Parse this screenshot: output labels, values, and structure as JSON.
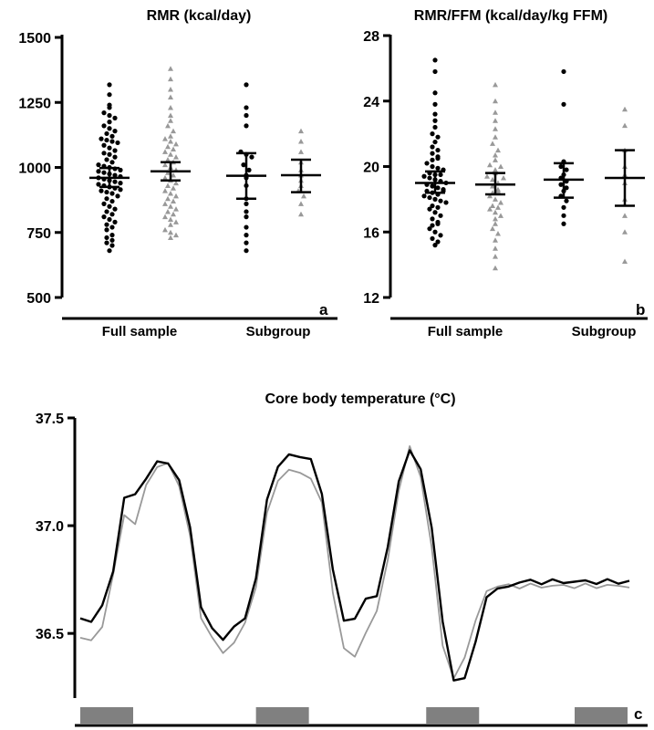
{
  "chart_data": [
    {
      "type": "scatter",
      "panel_label": "a",
      "title": "RMR (kcal/day)",
      "ylim": [
        500,
        1500
      ],
      "yticks": [
        500,
        750,
        1000,
        1250,
        1500
      ],
      "group_labels": [
        "Full sample",
        "Subgroup"
      ],
      "series": [
        {
          "group": "Full sample",
          "marker": "circle",
          "color": "#000000",
          "mean": 960,
          "ci": [
            925,
            998
          ],
          "values": [
            1318,
            1280,
            1240,
            1230,
            1210,
            1200,
            1190,
            1175,
            1160,
            1150,
            1140,
            1130,
            1120,
            1110,
            1105,
            1100,
            1095,
            1085,
            1075,
            1065,
            1055,
            1050,
            1040,
            1030,
            1020,
            1010,
            1005,
            1000,
            995,
            990,
            985,
            980,
            975,
            970,
            965,
            960,
            955,
            950,
            945,
            940,
            935,
            930,
            925,
            920,
            915,
            910,
            905,
            900,
            890,
            880,
            870,
            860,
            850,
            840,
            830,
            820,
            810,
            800,
            790,
            780,
            770,
            760,
            740,
            730,
            720,
            710,
            700,
            680
          ]
        },
        {
          "group": "Full sample",
          "marker": "triangle",
          "color": "#999999",
          "mean": 985,
          "ci": [
            950,
            1020
          ],
          "values": [
            1380,
            1340,
            1300,
            1270,
            1230,
            1200,
            1180,
            1160,
            1140,
            1120,
            1110,
            1100,
            1090,
            1080,
            1070,
            1060,
            1050,
            1040,
            1030,
            1020,
            1010,
            1000,
            990,
            980,
            970,
            960,
            950,
            940,
            930,
            920,
            910,
            900,
            890,
            880,
            870,
            860,
            850,
            840,
            830,
            820,
            810,
            800,
            790,
            780,
            760,
            750,
            740,
            730
          ]
        },
        {
          "group": "Subgroup",
          "marker": "circle",
          "color": "#000000",
          "mean": 968,
          "ci": [
            880,
            1055
          ],
          "values": [
            1318,
            1230,
            1200,
            1160,
            1060,
            1050,
            1040,
            1010,
            990,
            970,
            960,
            930,
            880,
            860,
            830,
            810,
            770,
            740,
            710,
            680
          ]
        },
        {
          "group": "Subgroup",
          "marker": "triangle",
          "color": "#999999",
          "mean": 970,
          "ci": [
            905,
            1030
          ],
          "values": [
            1140,
            1100,
            1060,
            1020,
            990,
            970,
            950,
            930,
            910,
            890,
            860,
            820
          ]
        }
      ]
    },
    {
      "type": "scatter",
      "panel_label": "b",
      "title": "RMR/FFM (kcal/day/kg FFM)",
      "ylim": [
        12,
        28
      ],
      "yticks": [
        12,
        16,
        20,
        24,
        28
      ],
      "group_labels": [
        "Full sample",
        "Subgroup"
      ],
      "series": [
        {
          "group": "Full sample",
          "marker": "circle",
          "color": "#000000",
          "mean": 19.0,
          "ci": [
            18.4,
            19.7
          ],
          "values": [
            26.5,
            25.8,
            24.5,
            23.8,
            23.2,
            22.8,
            22.4,
            22.0,
            21.8,
            21.5,
            21.2,
            21.0,
            20.8,
            20.6,
            20.4,
            20.2,
            20.0,
            19.9,
            19.8,
            19.6,
            19.5,
            19.4,
            19.3,
            19.2,
            19.1,
            19.0,
            18.9,
            18.8,
            18.7,
            18.6,
            18.5,
            18.4,
            18.3,
            18.2,
            18.1,
            18.0,
            17.9,
            17.8,
            17.6,
            17.4,
            17.2,
            17.0,
            16.8,
            16.6,
            16.4,
            16.2,
            16.0,
            15.8,
            15.6,
            15.4,
            15.2,
            18.5,
            19.5,
            20.5,
            17.5,
            16.5
          ]
        },
        {
          "group": "Full sample",
          "marker": "triangle",
          "color": "#999999",
          "mean": 18.9,
          "ci": [
            18.3,
            19.6
          ],
          "values": [
            25.0,
            24.0,
            23.3,
            22.8,
            22.3,
            21.8,
            21.4,
            21.0,
            20.7,
            20.4,
            20.1,
            19.8,
            19.6,
            19.4,
            19.2,
            19.0,
            18.8,
            18.6,
            18.4,
            18.2,
            18.0,
            17.8,
            17.6,
            17.4,
            17.2,
            17.0,
            16.8,
            16.5,
            16.2,
            15.9,
            15.5,
            15.0,
            14.5,
            13.8,
            20.0,
            18.5,
            17.5,
            19.3
          ]
        },
        {
          "group": "Subgroup",
          "marker": "circle",
          "color": "#000000",
          "mean": 19.2,
          "ci": [
            18.1,
            20.2
          ],
          "values": [
            25.8,
            23.8,
            20.3,
            20.0,
            19.8,
            19.5,
            19.3,
            19.1,
            18.9,
            18.7,
            18.5,
            18.2,
            17.9,
            17.5,
            17.0,
            16.5
          ]
        },
        {
          "group": "Subgroup",
          "marker": "triangle",
          "color": "#999999",
          "mean": 19.3,
          "ci": [
            17.6,
            21.0
          ],
          "values": [
            23.5,
            22.5,
            21.0,
            20.0,
            19.5,
            19.0,
            18.0,
            17.0,
            16.0,
            14.2
          ]
        }
      ]
    },
    {
      "type": "line",
      "panel_label": "c",
      "title": "Core body temperature (°C)",
      "ylim": [
        36.2,
        37.5
      ],
      "yticks": [
        36.5,
        37.0,
        37.5
      ],
      "x": [
        0,
        2,
        4,
        6,
        8,
        10,
        12,
        14,
        16,
        18,
        20,
        22,
        24,
        26,
        28,
        30,
        32,
        34,
        36,
        38,
        40,
        42,
        44,
        46,
        48,
        50,
        52,
        54,
        56,
        58,
        60,
        62,
        64,
        66,
        68,
        70,
        72,
        74,
        76,
        78,
        80,
        82,
        84,
        86,
        88,
        90,
        92,
        94,
        96,
        98,
        100
      ],
      "series": [
        {
          "color": "#000000",
          "values": [
            36.57,
            36.56,
            36.62,
            36.8,
            37.12,
            37.15,
            37.22,
            37.29,
            37.3,
            37.2,
            37.0,
            36.62,
            36.52,
            36.48,
            36.52,
            36.58,
            36.75,
            37.12,
            37.28,
            37.32,
            37.33,
            37.3,
            37.15,
            36.8,
            36.55,
            36.58,
            36.65,
            36.68,
            36.9,
            37.2,
            37.36,
            37.25,
            37.0,
            36.55,
            36.28,
            36.3,
            36.45,
            36.68,
            36.7,
            36.72,
            36.74,
            36.74,
            36.74,
            36.74,
            36.74,
            36.74,
            36.74,
            36.74,
            36.74,
            36.74,
            36.74
          ]
        },
        {
          "color": "#999999",
          "values": [
            36.47,
            36.48,
            36.52,
            36.78,
            37.05,
            37.0,
            37.2,
            37.26,
            37.3,
            37.18,
            36.95,
            36.58,
            36.47,
            36.42,
            36.45,
            36.55,
            36.72,
            37.05,
            37.22,
            37.25,
            37.25,
            37.22,
            37.1,
            36.7,
            36.42,
            36.4,
            36.5,
            36.6,
            36.85,
            37.15,
            37.38,
            37.22,
            36.9,
            36.45,
            36.28,
            36.4,
            36.55,
            36.7,
            36.72,
            36.72,
            36.72,
            36.72,
            36.72,
            36.72,
            36.72,
            36.72,
            36.72,
            36.72,
            36.72,
            36.72,
            36.72
          ]
        }
      ],
      "shaded_periods": [
        [
          0,
          10
        ],
        [
          32,
          42
        ],
        [
          63,
          73
        ],
        [
          96,
          106
        ]
      ]
    }
  ]
}
